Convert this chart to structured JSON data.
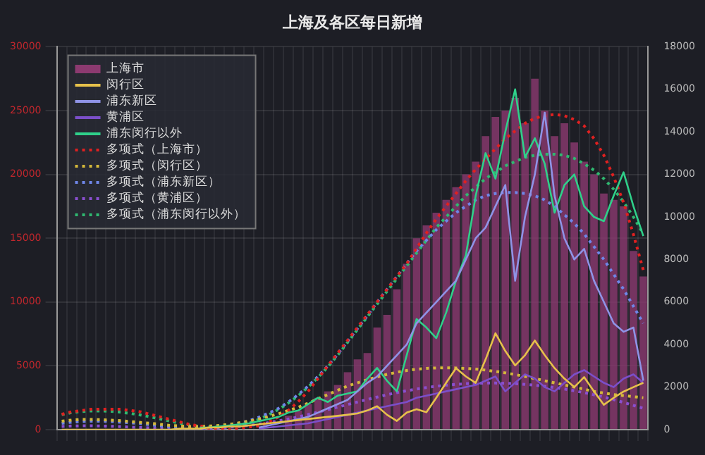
{
  "chart_data": {
    "type": "bar",
    "title": "上海及各区每日新增",
    "categories": [
      null,
      null,
      null,
      null,
      null,
      null,
      null,
      null,
      null,
      null,
      null,
      null,
      null,
      null,
      null,
      null,
      null,
      null,
      null,
      null,
      null,
      null,
      null,
      null,
      null,
      null,
      null,
      null,
      null,
      null,
      null,
      null,
      null,
      null,
      null,
      null,
      null,
      null,
      null,
      null,
      null,
      null,
      null,
      null,
      null,
      null,
      null,
      null,
      null,
      null,
      null,
      null,
      null,
      null,
      null,
      null,
      null,
      null,
      null,
      null
    ],
    "series": [
      {
        "name": "上海市",
        "color": "#8c3a70",
        "values": [
          null,
          null,
          null,
          null,
          null,
          null,
          null,
          null,
          null,
          null,
          null,
          null,
          null,
          null,
          null,
          null,
          null,
          null,
          null,
          null,
          null,
          null,
          null,
          1100,
          1500,
          2000,
          2500,
          3000,
          3500,
          4500,
          5500,
          6000,
          8000,
          9000,
          11000,
          13000,
          15000,
          16000,
          17000,
          18000,
          19000,
          20000,
          21000,
          23000,
          24500,
          25000,
          26000,
          24000,
          27500,
          25000,
          23000,
          24000,
          22500,
          21000,
          20000,
          18500,
          18000,
          17500,
          14000,
          12000
        ]
      },
      {
        "name": "闵行区",
        "type": "line",
        "axis": "y2",
        "color": "#e6c14a",
        "line_style": "solid",
        "values": [
          0,
          0,
          0,
          0,
          0,
          0,
          0,
          0,
          0,
          0,
          0,
          0,
          50,
          50,
          50,
          100,
          100,
          150,
          150,
          200,
          250,
          300,
          350,
          400,
          450,
          500,
          550,
          600,
          650,
          700,
          760,
          900,
          1100,
          700,
          410,
          800,
          960,
          820,
          1500,
          2200,
          2890,
          2500,
          2200,
          3300,
          4530,
          3700,
          3020,
          3500,
          4190,
          3500,
          2890,
          2400,
          2000,
          2470,
          1800,
          1170,
          1500,
          1790,
          2000,
          2200
        ]
      },
      {
        "name": "浦东新区",
        "type": "line",
        "axis": "y2",
        "color": "#8f93e6",
        "line_style": "solid",
        "values": [
          null,
          null,
          null,
          null,
          null,
          null,
          null,
          null,
          null,
          null,
          null,
          null,
          null,
          null,
          null,
          null,
          null,
          null,
          null,
          null,
          100,
          200,
          300,
          400,
          500,
          600,
          800,
          1000,
          1200,
          1400,
          1800,
          2200,
          2500,
          3000,
          3500,
          4000,
          5000,
          5500,
          6000,
          6500,
          7000,
          8000,
          9000,
          9500,
          10500,
          11500,
          7000,
          10000,
          12000,
          14900,
          11000,
          9000,
          8000,
          8500,
          7000,
          6000,
          5000,
          4600,
          4800,
          2300
        ]
      },
      {
        "name": "黄浦区",
        "type": "line",
        "axis": "y2",
        "color": "#7b4fc9",
        "line_style": "solid",
        "values": [
          null,
          null,
          null,
          null,
          null,
          null,
          null,
          null,
          null,
          null,
          null,
          null,
          null,
          null,
          null,
          null,
          null,
          null,
          null,
          null,
          50,
          100,
          150,
          200,
          250,
          300,
          400,
          500,
          600,
          700,
          800,
          900,
          1000,
          1100,
          1200,
          1300,
          1500,
          1600,
          1700,
          1800,
          1900,
          2000,
          2100,
          2300,
          2500,
          1800,
          2200,
          2600,
          2400,
          2000,
          1800,
          2200,
          2600,
          2800,
          2500,
          2200,
          2000,
          2400,
          2600,
          2200
        ]
      },
      {
        "name": "浦东闵行以外",
        "type": "line",
        "axis": "y2",
        "color": "#2fd08a",
        "line_style": "solid",
        "values": [
          null,
          null,
          null,
          null,
          null,
          null,
          null,
          null,
          null,
          null,
          null,
          null,
          null,
          null,
          100,
          100,
          150,
          200,
          250,
          300,
          400,
          500,
          600,
          800,
          900,
          1200,
          1500,
          1300,
          1600,
          1700,
          1800,
          2400,
          2900,
          2300,
          1800,
          3500,
          5200,
          4800,
          4300,
          5500,
          7000,
          8200,
          11000,
          13000,
          11800,
          14000,
          16000,
          12800,
          13700,
          12500,
          10200,
          11500,
          12000,
          10500,
          10000,
          9800,
          11000,
          12100,
          10500,
          9100
        ]
      },
      {
        "name": "多项式（上海市）",
        "type": "line",
        "color": "#e02020",
        "line_style": "dotted",
        "values": [
          1200,
          1400,
          1500,
          1600,
          1600,
          1600,
          1600,
          1500,
          1400,
          1200,
          1000,
          800,
          600,
          400,
          300,
          100,
          100,
          0,
          100,
          200,
          300,
          600,
          1000,
          1500,
          2200,
          3000,
          4000,
          5000,
          6000,
          7000,
          8000,
          9000,
          10000,
          11000,
          12000,
          13000,
          14200,
          15400,
          16500,
          17500,
          18500,
          19500,
          20400,
          21200,
          22000,
          22800,
          23400,
          24000,
          24400,
          24600,
          24700,
          24600,
          24300,
          23800,
          22800,
          21500,
          19800,
          17800,
          15300,
          12500
        ]
      },
      {
        "name": "多项式（闵行区）",
        "type": "line",
        "axis": "y2",
        "color": "#d4b83a",
        "line_style": "dotted",
        "values": [
          400,
          450,
          480,
          480,
          470,
          450,
          420,
          380,
          340,
          300,
          250,
          200,
          170,
          150,
          150,
          170,
          200,
          250,
          320,
          400,
          500,
          620,
          750,
          900,
          1050,
          1250,
          1450,
          1650,
          1850,
          2050,
          2200,
          2350,
          2480,
          2600,
          2700,
          2780,
          2840,
          2880,
          2900,
          2910,
          2900,
          2880,
          2850,
          2800,
          2740,
          2670,
          2590,
          2500,
          2400,
          2300,
          2200,
          2100,
          2000,
          1900,
          1800,
          1720,
          1650,
          1600,
          1550,
          1500
        ]
      },
      {
        "name": "多项式（浦东新区）",
        "type": "line",
        "axis": "y2",
        "color": "#6f86e8",
        "line_style": "dotted",
        "values": [
          300,
          350,
          380,
          400,
          400,
          380,
          350,
          320,
          280,
          230,
          180,
          140,
          110,
          90,
          90,
          110,
          150,
          210,
          300,
          420,
          580,
          780,
          1000,
          1300,
          1650,
          2050,
          2500,
          3000,
          3550,
          4150,
          4750,
          5350,
          6000,
          6600,
          7200,
          7800,
          8400,
          8900,
          9400,
          9800,
          10200,
          10500,
          10800,
          11000,
          11100,
          11150,
          11150,
          11100,
          11000,
          10800,
          10500,
          10100,
          9700,
          9200,
          8600,
          8000,
          7300,
          6600,
          5800,
          5000
        ]
      },
      {
        "name": "多项式（黄浦区）",
        "type": "line",
        "axis": "y2",
        "color": "#8a4fd0",
        "line_style": "dotted",
        "values": [
          150,
          170,
          180,
          180,
          170,
          160,
          140,
          120,
          100,
          80,
          60,
          50,
          40,
          40,
          50,
          60,
          80,
          110,
          150,
          200,
          260,
          330,
          410,
          500,
          600,
          710,
          820,
          940,
          1060,
          1180,
          1300,
          1420,
          1530,
          1640,
          1740,
          1830,
          1910,
          1980,
          2040,
          2090,
          2130,
          2160,
          2180,
          2190,
          2190,
          2180,
          2160,
          2130,
          2090,
          2040,
          1980,
          1910,
          1830,
          1740,
          1640,
          1530,
          1410,
          1280,
          1140,
          1000
        ]
      },
      {
        "name": "多项式（浦东闵行以外）",
        "type": "line",
        "axis": "y2",
        "color": "#2fb870",
        "line_style": "dotted",
        "values": [
          700,
          800,
          850,
          880,
          880,
          860,
          820,
          760,
          690,
          600,
          500,
          400,
          300,
          220,
          160,
          120,
          120,
          150,
          220,
          320,
          480,
          700,
          950,
          1250,
          1600,
          2000,
          2450,
          2950,
          3500,
          4100,
          4700,
          5300,
          5900,
          6500,
          7100,
          7700,
          8300,
          8900,
          9500,
          10000,
          10500,
          11000,
          11400,
          11800,
          12100,
          12400,
          12600,
          12800,
          12900,
          12950,
          12950,
          12900,
          12750,
          12500,
          12200,
          11800,
          11300,
          10700,
          10000,
          9200
        ]
      }
    ],
    "ylim": [
      0,
      30000
    ],
    "yticks": [
      0,
      5000,
      10000,
      15000,
      20000,
      25000,
      30000
    ],
    "y2lim": [
      0,
      18000
    ],
    "y2ticks": [
      0,
      2000,
      4000,
      6000,
      8000,
      10000,
      12000,
      14000,
      16000,
      18000
    ],
    "grid": true,
    "legend": "top left",
    "marker": "none"
  }
}
